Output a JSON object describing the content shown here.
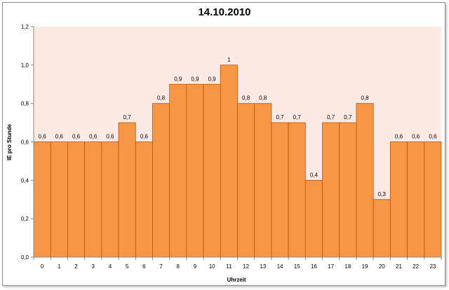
{
  "chart_data": {
    "type": "bar",
    "title": "14.10.2010",
    "xlabel": "Uhrzeit",
    "ylabel": "IE pro Stunde",
    "categories": [
      "0",
      "1",
      "2",
      "3",
      "4",
      "5",
      "6",
      "7",
      "8",
      "9",
      "10",
      "11",
      "12",
      "13",
      "14",
      "15",
      "16",
      "17",
      "18",
      "19",
      "20",
      "21",
      "22",
      "23"
    ],
    "values": [
      0.6,
      0.6,
      0.6,
      0.6,
      0.6,
      0.7,
      0.6,
      0.8,
      0.9,
      0.9,
      0.9,
      1,
      0.8,
      0.8,
      0.7,
      0.7,
      0.4,
      0.7,
      0.7,
      0.8,
      0.3,
      0.6,
      0.6,
      0.6
    ],
    "data_labels": [
      "0,6",
      "0,6",
      "0,6",
      "0,6",
      "0,6",
      "0,7",
      "0,6",
      "0,8",
      "0,9",
      "0,9",
      "0,9",
      "1",
      "0,8",
      "0,8",
      "0,7",
      "0,7",
      "0,4",
      "0,7",
      "0,7",
      "0,8",
      "0,3",
      "0,6",
      "0,6",
      "0,6"
    ],
    "ylim": [
      0,
      1.2
    ],
    "yticks": [
      0,
      0.2,
      0.4,
      0.6,
      0.8,
      1.0,
      1.2
    ],
    "ytick_labels": [
      "0,0",
      "0,2",
      "0,4",
      "0,6",
      "0,8",
      "1,0",
      "1,2"
    ],
    "grid": false,
    "legend": "none",
    "colors": {
      "bar_fill": "#f79646",
      "bar_edge": "#b65708",
      "plot_background": "#fdeae4",
      "axis": "#868686"
    }
  }
}
